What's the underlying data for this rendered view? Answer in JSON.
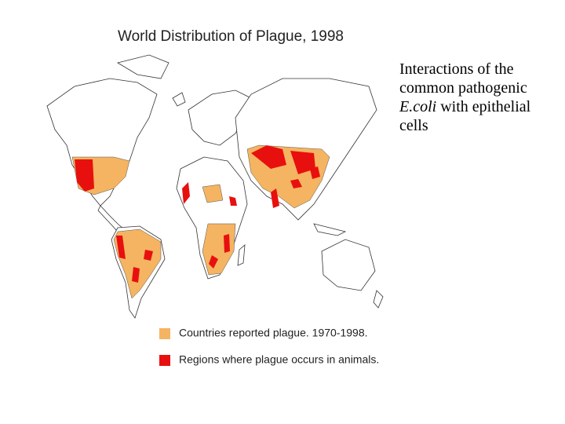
{
  "map": {
    "title": "World Distribution of Plague, 1998",
    "legend": [
      {
        "label": "Countries reported plague. 1970-1998.",
        "color": "#f5b461"
      },
      {
        "label": "Regions where plague occurs in animals.",
        "color": "#e8100e"
      }
    ]
  },
  "side_text": {
    "before": "Interactions of the common pathogenic",
    "emphasis": "E.coli",
    "after": "with epithelial cells"
  }
}
